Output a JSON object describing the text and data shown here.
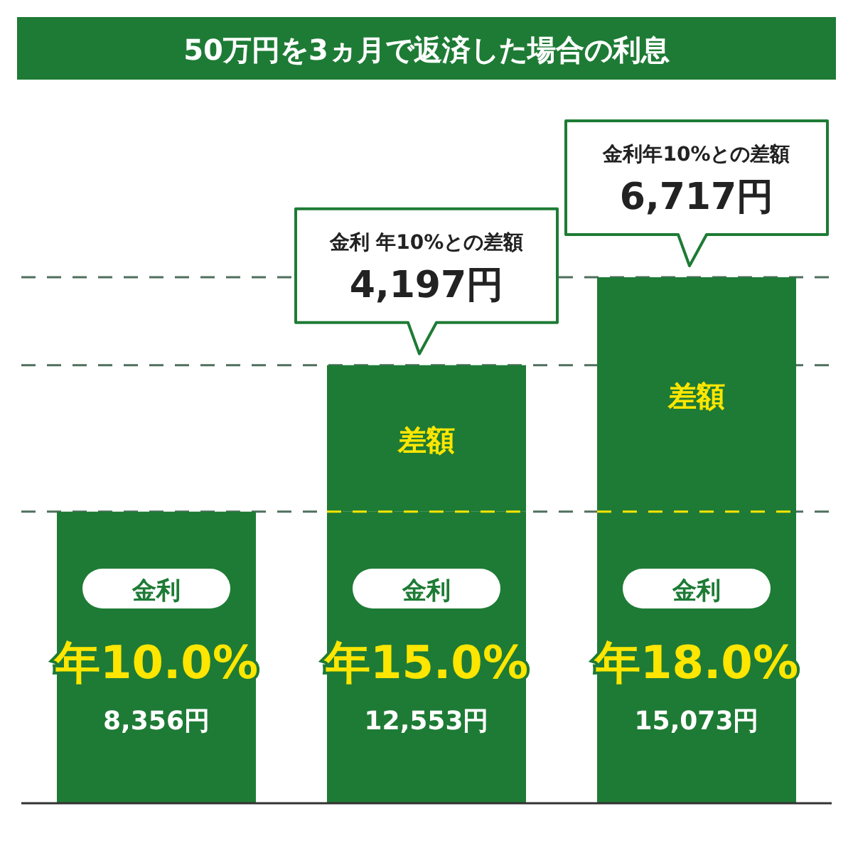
{
  "chart_data": {
    "type": "bar",
    "title": "50万円を3ヵ月で返済した場合の利息",
    "stacked": true,
    "categories": [
      "年10.0%",
      "年15.0%",
      "年18.0%"
    ],
    "series": [
      {
        "color": "#1e7b35",
        "values": [
          8356,
          8356,
          8356
        ]
      },
      {
        "name": "差額",
        "color": "#1e7b35",
        "values": [
          null,
          4197,
          6717
        ],
        "value_labels": [
          null,
          "4,197円",
          "6,717円"
        ]
      }
    ],
    "totals": [
      "8,356円",
      "12,553円",
      "15,073円"
    ],
    "annotations": [
      "金利",
      "金利",
      "金利",
      "金利 年10%との差額",
      "金利年10%との差額"
    ],
    "ref_lines": [
      {
        "axis": "y",
        "value": 8356,
        "color": "#4f6f5c",
        "line_style": "dashed"
      },
      {
        "axis": "y",
        "value": 12553,
        "color": "#4f6f5c",
        "line_style": "dashed"
      },
      {
        "axis": "y",
        "value": 15073,
        "color": "#4f6f5c",
        "line_style": "dashed"
      }
    ]
  }
}
